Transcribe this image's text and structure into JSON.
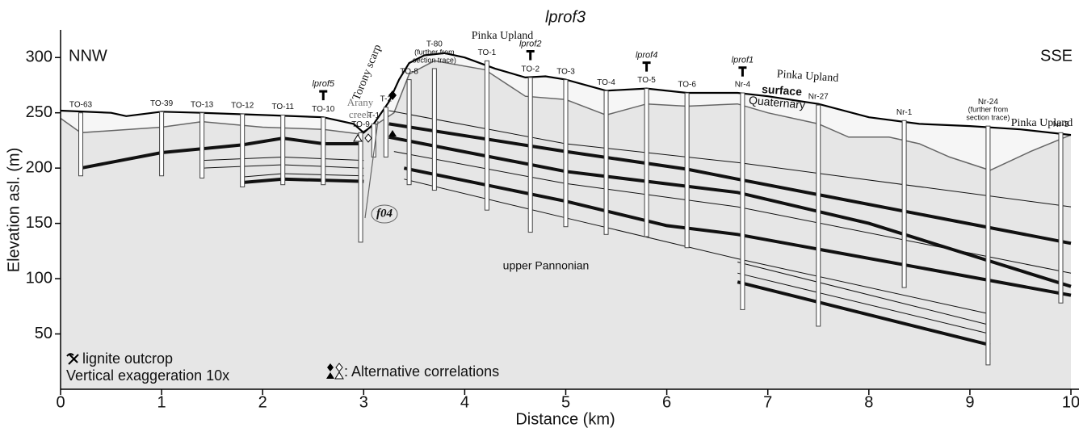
{
  "chart_data": {
    "type": "cross-section",
    "title": "lprof3",
    "xlabel": "Distance (km)",
    "ylabel": "Elevation asl. (m)",
    "xlim": [
      0,
      10
    ],
    "ylim": [
      0,
      325
    ],
    "xticks": [
      0,
      1,
      2,
      3,
      4,
      5,
      6,
      7,
      8,
      9,
      10
    ],
    "yticks": [
      50,
      100,
      150,
      200,
      250,
      300
    ],
    "surface": {
      "x": [
        0,
        0.5,
        0.65,
        1.0,
        1.4,
        2.0,
        2.6,
        2.9,
        3.0,
        3.1,
        3.25,
        3.35,
        3.45,
        3.6,
        3.8,
        4.0,
        4.3,
        4.6,
        4.8,
        5.0,
        5.4,
        5.8,
        6.2,
        6.7,
        7.0,
        7.5,
        8.0,
        8.5,
        9.0,
        9.5,
        10
      ],
      "y": [
        252,
        250,
        247,
        251,
        250,
        248,
        246,
        240,
        232,
        240,
        260,
        280,
        295,
        302,
        304,
        300,
        290,
        282,
        283,
        280,
        270,
        272,
        268,
        268,
        265,
        258,
        246,
        240,
        238,
        235,
        230
      ]
    },
    "base": {
      "x": [
        0,
        0.2,
        1.0,
        1.4,
        2.0,
        2.6,
        2.95,
        3.1,
        3.3,
        3.45,
        3.7,
        4.2,
        4.6,
        5.0,
        5.4,
        5.8,
        6.2,
        6.7,
        7.0,
        7.5,
        7.8,
        8.2,
        8.5,
        8.8,
        9.2,
        9.6,
        10
      ],
      "y": [
        245,
        232,
        237,
        242,
        237,
        235,
        231,
        238,
        250,
        285,
        297,
        289,
        265,
        262,
        248,
        258,
        256,
        258,
        250,
        240,
        228,
        228,
        222,
        210,
        198,
        215,
        230
      ]
    },
    "layers": [
      {
        "thick": true,
        "x": [
          0.2,
          1.0,
          1.8,
          2.2,
          2.6,
          2.95
        ],
        "y": [
          200,
          214,
          221,
          227,
          222,
          222
        ]
      },
      {
        "thick": false,
        "x": [
          1.4,
          2.2,
          3.0
        ],
        "y": [
          207,
          210,
          207
        ]
      },
      {
        "thick": false,
        "x": [
          1.4,
          2.2,
          3.0
        ],
        "y": [
          200,
          203,
          200
        ]
      },
      {
        "thick": false,
        "x": [
          1.8,
          2.2,
          3.0
        ],
        "y": [
          192,
          195,
          193
        ]
      },
      {
        "thick": true,
        "x": [
          1.8,
          2.2,
          3.0
        ],
        "y": [
          187,
          190,
          188
        ]
      },
      {
        "thick": false,
        "x": [
          3.25,
          5.0,
          6.7,
          10
        ],
        "y": [
          252,
          222,
          205,
          165
        ]
      },
      {
        "thick": true,
        "x": [
          3.25,
          5.0,
          6.2,
          6.7,
          10
        ],
        "y": [
          240,
          215,
          199,
          190,
          132
        ]
      },
      {
        "thick": true,
        "x": [
          3.25,
          5.0,
          6.7,
          8.0,
          10
        ],
        "y": [
          228,
          197,
          178,
          150,
          93
        ]
      },
      {
        "thick": false,
        "x": [
          3.3,
          5.0,
          6.7,
          10
        ],
        "y": [
          215,
          186,
          165,
          105
        ]
      },
      {
        "thick": true,
        "x": [
          3.4,
          5.0,
          6.0,
          6.7,
          10
        ],
        "y": [
          200,
          170,
          148,
          140,
          85
        ]
      },
      {
        "thick": false,
        "x": [
          3.4,
          5.0,
          6.7,
          9.2
        ],
        "y": [
          190,
          155,
          118,
          68
        ]
      },
      {
        "thick": false,
        "x": [
          6.7,
          9.2
        ],
        "y": [
          115,
          58
        ]
      },
      {
        "thick": false,
        "x": [
          6.7,
          9.2
        ],
        "y": [
          105,
          50
        ]
      },
      {
        "thick": true,
        "x": [
          6.7,
          9.2
        ],
        "y": [
          97,
          40
        ]
      }
    ],
    "boreholes": [
      {
        "name": "TO-63",
        "x": 0.2,
        "top": 250,
        "bottom": 193
      },
      {
        "name": "TO-39",
        "x": 1.0,
        "top": 251,
        "bottom": 193
      },
      {
        "name": "TO-13",
        "x": 1.4,
        "top": 250,
        "bottom": 191
      },
      {
        "name": "TO-12",
        "x": 1.8,
        "top": 249,
        "bottom": 183
      },
      {
        "name": "TO-11",
        "x": 2.2,
        "top": 248,
        "bottom": 185
      },
      {
        "name": "TO-10",
        "x": 2.6,
        "top": 246,
        "bottom": 185
      },
      {
        "name": "TO-9",
        "x": 2.97,
        "top": 232,
        "bottom": 133
      },
      {
        "name": "T-1",
        "x": 3.1,
        "top": 240,
        "bottom": 210
      },
      {
        "name": "T-2",
        "x": 3.22,
        "top": 255,
        "bottom": 210
      },
      {
        "name": "TO-8",
        "x": 3.45,
        "top": 280,
        "bottom": 185
      },
      {
        "name": "T-80",
        "x": 3.7,
        "top": 290,
        "bottom": 180,
        "note": [
          "(further from",
          "section trace)"
        ]
      },
      {
        "name": "TO-1",
        "x": 4.22,
        "top": 297,
        "bottom": 162
      },
      {
        "name": "TO-2",
        "x": 4.65,
        "top": 282,
        "bottom": 142
      },
      {
        "name": "TO-3",
        "x": 5.0,
        "top": 280,
        "bottom": 147
      },
      {
        "name": "TO-4",
        "x": 5.4,
        "top": 270,
        "bottom": 140
      },
      {
        "name": "TO-5",
        "x": 5.8,
        "top": 272,
        "bottom": 138
      },
      {
        "name": "TO-6",
        "x": 6.2,
        "top": 268,
        "bottom": 128
      },
      {
        "name": "Nr-4",
        "x": 6.75,
        "top": 268,
        "bottom": 72
      },
      {
        "name": "Nr-27",
        "x": 7.5,
        "top": 257,
        "bottom": 57
      },
      {
        "name": "Nr-1",
        "x": 8.35,
        "top": 243,
        "bottom": 92
      },
      {
        "name": "Nr-24",
        "x": 9.18,
        "top": 238,
        "bottom": 22,
        "note": [
          "(further from",
          "section trace)"
        ]
      },
      {
        "name": "Nr-3",
        "x": 9.9,
        "top": 232,
        "bottom": 78
      }
    ],
    "profiles": [
      {
        "name": "lprof5",
        "x": 2.6
      },
      {
        "name": "lprof2",
        "x": 4.65
      },
      {
        "name": "lprof4",
        "x": 5.8
      },
      {
        "name": "lprof1",
        "x": 6.75
      }
    ],
    "labels": {
      "left_end": "NNW",
      "right_end": "SSE",
      "upland_1": "Pinka Upland",
      "upland_2": "Pinka Upland",
      "upland_3": "Pinka Upland",
      "scarp": "Torony scarp",
      "creek_1": "Arany",
      "creek_2": "creek",
      "fault": "f04",
      "surface": "surface",
      "quaternary": "Quaternary",
      "pannonian": "upper Pannonian"
    },
    "legend": {
      "outcrop": "lignite outcrop",
      "exaggeration": "Vertical exaggeration 10x",
      "alternative": ": Alternative correlations"
    }
  }
}
